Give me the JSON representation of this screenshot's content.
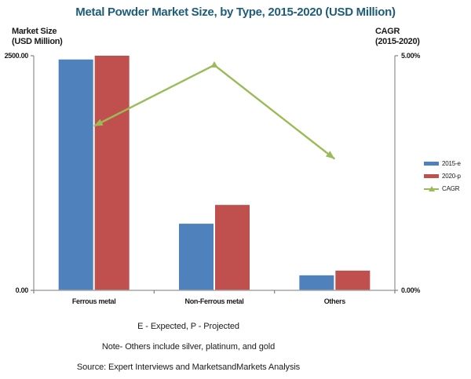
{
  "title": "Metal Powder Market Size, by Type, 2015-2020 (USD Million)",
  "title_color": "#1E5C78",
  "left_axis": {
    "title_line1": "Market Size",
    "title_line2": "(USD Million)",
    "max_label": "2500.00",
    "min_label": "0.00"
  },
  "right_axis": {
    "title_line1": "CAGR",
    "title_line2": "(2015-2020)",
    "max_label": "5.00%",
    "min_label": "0.00%"
  },
  "legend": [
    {
      "label": "2015-e",
      "swatch": "bar",
      "color": "#4F81BD"
    },
    {
      "label": "2020-p",
      "swatch": "bar",
      "color": "#C0504D"
    },
    {
      "label": "CAGR",
      "swatch": "line-triangle",
      "color": "#9BBB59"
    }
  ],
  "footnotes": [
    "E - Expected, P - Projected",
    "Note- Others include silver, platinum, and gold",
    "Source: Expert Interviews and MarketsandMarkets Analysis"
  ],
  "chart_data": {
    "type": "bar",
    "subtype": "bar-line-combo",
    "categories": [
      "Ferrous metal",
      "Non-Ferrous metal",
      "Others"
    ],
    "series": [
      {
        "name": "2015-e",
        "type": "bar",
        "axis": "left",
        "color": "#4F81BD",
        "values": [
          2460,
          710,
          160
        ]
      },
      {
        "name": "2020-p",
        "type": "bar",
        "axis": "left",
        "color": "#C0504D",
        "values": [
          2500,
          910,
          210
        ]
      },
      {
        "name": "CAGR",
        "type": "line",
        "axis": "right",
        "color": "#9BBB59",
        "values": [
          3.5,
          4.8,
          2.8
        ]
      }
    ],
    "title": "Metal Powder Market Size, by Type, 2015-2020 (USD Million)",
    "xlabel": "",
    "ylabel_left": "Market Size (USD Million)",
    "ylabel_right": "CAGR (2015-2020)",
    "left_axis_range": [
      0,
      2500
    ],
    "right_axis_range": [
      0,
      5
    ],
    "grid": false,
    "legend_position": "right",
    "line_end_style": "arrowheads"
  }
}
